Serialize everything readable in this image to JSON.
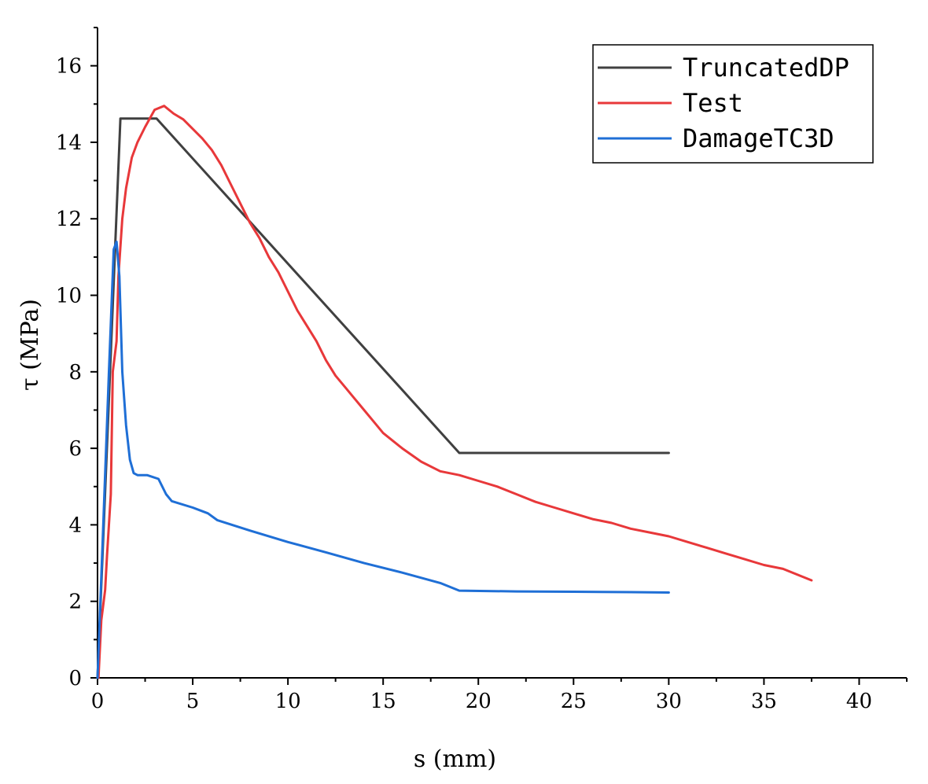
{
  "chart_data": {
    "type": "line",
    "xlabel": "s (mm)",
    "ylabel": "τ (MPa)",
    "xlim": [
      0,
      42.5
    ],
    "ylim": [
      0,
      17
    ],
    "x_ticks": [
      0,
      5,
      10,
      15,
      20,
      25,
      30,
      35,
      40
    ],
    "y_ticks": [
      0,
      2,
      4,
      6,
      8,
      10,
      12,
      14,
      16
    ],
    "grid": false,
    "legend_position": "top-right",
    "series": [
      {
        "name": "TruncatedDP",
        "color": "#404040",
        "x": [
          0,
          1.2,
          3.1,
          19.0,
          30.0
        ],
        "y": [
          0,
          14.62,
          14.62,
          5.88,
          5.88
        ]
      },
      {
        "name": "Test",
        "color": "#e8383a",
        "x": [
          0.05,
          0.2,
          0.4,
          0.5,
          0.7,
          0.8,
          1.0,
          1.1,
          1.3,
          1.5,
          1.8,
          2.1,
          2.5,
          3.0,
          3.5,
          4.0,
          4.5,
          5.0,
          5.5,
          6.0,
          6.5,
          7.0,
          7.5,
          8.0,
          8.5,
          9.0,
          9.5,
          10.0,
          10.5,
          11.0,
          11.5,
          12.0,
          12.5,
          13.0,
          13.5,
          14.0,
          14.5,
          15.0,
          16.0,
          17.0,
          18.0,
          19.0,
          20.0,
          21.0,
          22.0,
          23.0,
          24.0,
          25.0,
          26.0,
          27.0,
          28.0,
          29.0,
          30.0,
          31.0,
          32.0,
          33.0,
          34.0,
          35.0,
          36.0,
          37.0,
          37.5
        ],
        "y": [
          0,
          1.5,
          2.3,
          3.2,
          4.8,
          8.0,
          8.8,
          10.5,
          12.0,
          12.8,
          13.6,
          14.0,
          14.4,
          14.85,
          14.95,
          14.75,
          14.6,
          14.35,
          14.1,
          13.8,
          13.4,
          12.9,
          12.4,
          11.9,
          11.5,
          11.0,
          10.6,
          10.1,
          9.6,
          9.2,
          8.8,
          8.3,
          7.9,
          7.6,
          7.3,
          7.0,
          6.7,
          6.4,
          6.0,
          5.65,
          5.4,
          5.3,
          5.15,
          5.0,
          4.8,
          4.6,
          4.45,
          4.3,
          4.15,
          4.05,
          3.9,
          3.8,
          3.7,
          3.55,
          3.4,
          3.25,
          3.1,
          2.95,
          2.85,
          2.65,
          2.55
        ]
      },
      {
        "name": "DamageTC3D",
        "color": "#1f6fd6",
        "x": [
          0,
          0.3,
          0.6,
          0.85,
          1.0,
          1.15,
          1.3,
          1.5,
          1.7,
          1.9,
          2.1,
          2.6,
          3.2,
          3.6,
          3.9,
          5.0,
          5.8,
          6.3,
          8.0,
          10.0,
          12.0,
          14.0,
          16.0,
          18.0,
          19.0,
          22.0,
          25.0,
          28.0,
          30.0
        ],
        "y": [
          0,
          4.0,
          8.0,
          11.2,
          11.4,
          10.5,
          8.0,
          6.6,
          5.7,
          5.35,
          5.3,
          5.3,
          5.2,
          4.8,
          4.62,
          4.45,
          4.3,
          4.12,
          3.85,
          3.55,
          3.28,
          3.0,
          2.75,
          2.48,
          2.28,
          2.26,
          2.25,
          2.24,
          2.23
        ]
      }
    ]
  }
}
